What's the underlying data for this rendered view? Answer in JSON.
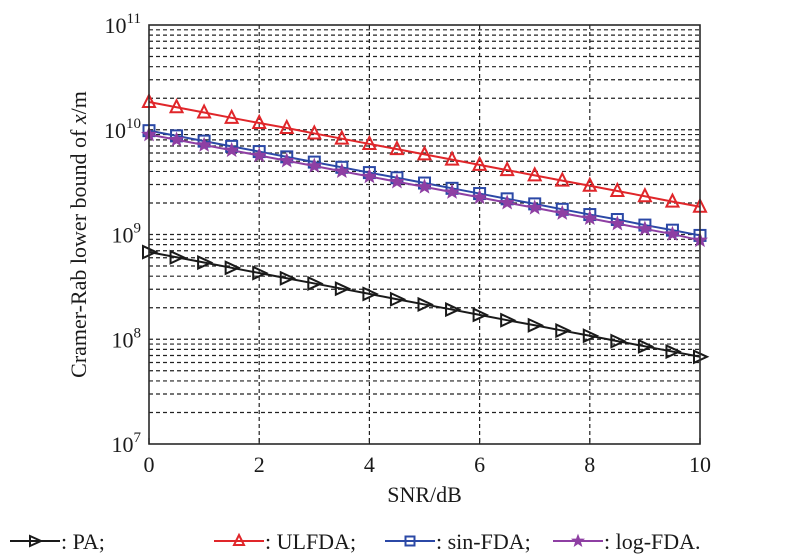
{
  "chart_data": {
    "type": "line",
    "title": "",
    "xlabel": "SNR/dB",
    "ylabel_parts": [
      "Cramer-Rab lower bound of ",
      "x",
      "/m"
    ],
    "ylabel": "Cramer-Rab lower bound of x/m",
    "xscale": "linear",
    "yscale": "log",
    "xlim": [
      0,
      10
    ],
    "ylim": [
      10000000.0,
      100000000000.0
    ],
    "xticks": [
      0,
      2,
      4,
      6,
      8,
      10
    ],
    "xtick_labels": [
      "0",
      "2",
      "4",
      "6",
      "8",
      "10"
    ],
    "yticks": [
      7,
      8,
      9,
      10,
      11
    ],
    "ytick_labels": [
      {
        "base": "10",
        "exp": "7"
      },
      {
        "base": "10",
        "exp": "8"
      },
      {
        "base": "10",
        "exp": "9"
      },
      {
        "base": "10",
        "exp": "10"
      },
      {
        "base": "10",
        "exp": "11"
      }
    ],
    "grid": true,
    "grid_style": "dashed",
    "legend_position": "bottom",
    "x": [
      0,
      0.5,
      1,
      1.5,
      2,
      2.5,
      3,
      3.5,
      4,
      4.5,
      5,
      5.5,
      6,
      6.5,
      7,
      7.5,
      8,
      8.5,
      9,
      9.5,
      10
    ],
    "series": [
      {
        "name": "PA",
        "legend_label": ": PA;",
        "color": "#1a1a1a",
        "marker": "triangle-right",
        "values": [
          680000000.0,
          606000000.0,
          540000000.0,
          481000000.0,
          429000000.0,
          382000000.0,
          341000000.0,
          304000000.0,
          271000000.0,
          241000000.0,
          215000000.0,
          192000000.0,
          171000000.0,
          152000000.0,
          136000000.0,
          121000000.0,
          108000000.0,
          96000000.0,
          85600000.0,
          76300000.0,
          68000000.0
        ]
      },
      {
        "name": "ULFDA",
        "legend_label": ": ULFDA;",
        "color": "#e0262a",
        "marker": "triangle-up",
        "values": [
          18400000000.0,
          16400000000.0,
          14600000000.0,
          13000000000.0,
          11600000000.0,
          10400000000.0,
          9220000000.0,
          8220000000.0,
          7320000000.0,
          6530000000.0,
          5820000000.0,
          5190000000.0,
          4620000000.0,
          4120000000.0,
          3670000000.0,
          3270000000.0,
          2920000000.0,
          2600000000.0,
          2320000000.0,
          2060000000.0,
          1840000000.0
        ]
      },
      {
        "name": "sin-FDA",
        "legend_label": ": sin-FDA;",
        "color": "#2b48a6",
        "marker": "square",
        "values": [
          9800000000.0,
          8740000000.0,
          7790000000.0,
          6940000000.0,
          6190000000.0,
          5510000000.0,
          4910000000.0,
          4380000000.0,
          3900000000.0,
          3480000000.0,
          3100000000.0,
          2760000000.0,
          2460000000.0,
          2190000000.0,
          1960000000.0,
          1740000000.0,
          1550000000.0,
          1390000000.0,
          1230000000.0,
          1100000000.0,
          980000000.0
        ]
      },
      {
        "name": "log-FDA",
        "legend_label": ": log-FDA.",
        "color": "#8e3fa3",
        "marker": "star",
        "values": [
          9000000000.0,
          8020000000.0,
          7150000000.0,
          6370000000.0,
          5680000000.0,
          5060000000.0,
          4510000000.0,
          4020000000.0,
          3580000000.0,
          3190000000.0,
          2850000000.0,
          2540000000.0,
          2260000000.0,
          2010000000.0,
          1800000000.0,
          1600000000.0,
          1430000000.0,
          1270000000.0,
          1130000000.0,
          1010000000.0,
          880000000.0
        ]
      }
    ]
  }
}
